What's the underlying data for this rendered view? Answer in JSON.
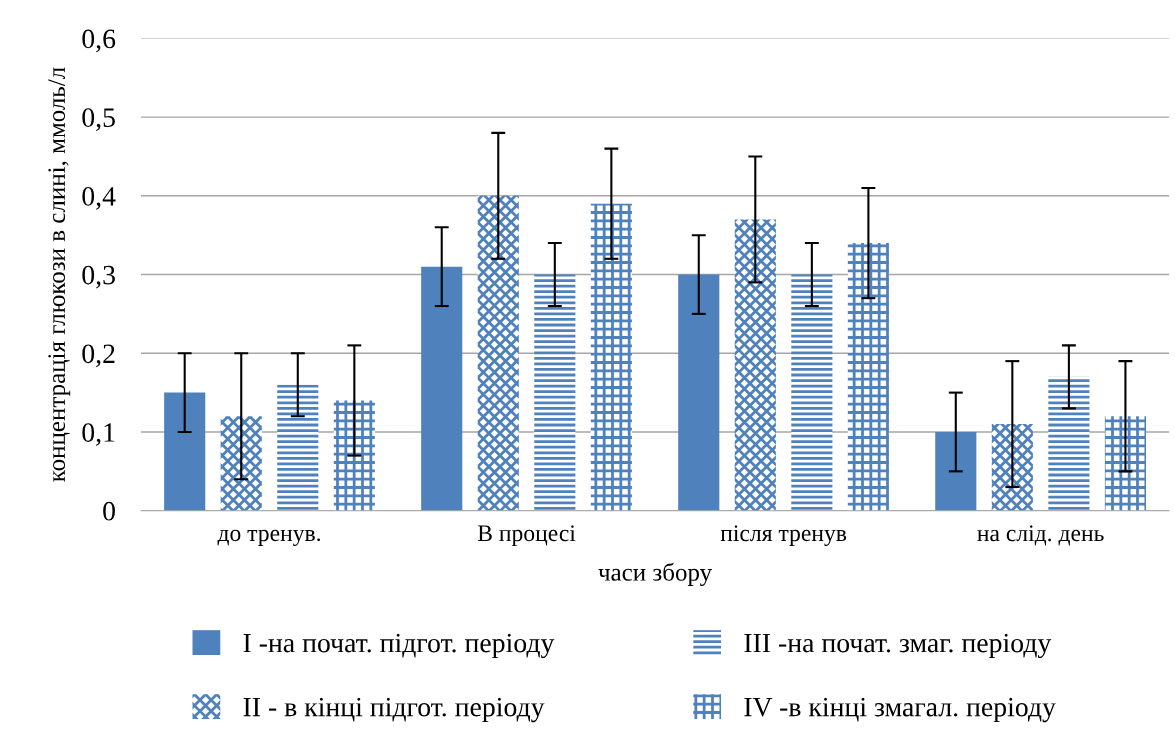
{
  "chart_data": {
    "type": "bar",
    "xlabel": "часи збору",
    "ylabel": "концентрація глюкози в слині, ммоль/л",
    "categories": [
      "до тренув.",
      "В процесі",
      "після тренув",
      "на слід. день"
    ],
    "series": [
      {
        "name": "I -на почат. підгот. періоду",
        "color": "#4f81bd",
        "values": [
          0.15,
          0.31,
          0.3,
          0.1
        ],
        "errors": [
          0.05,
          0.05,
          0.05,
          0.05
        ]
      },
      {
        "name": "II - в кінці підгот. періоду",
        "color": "#4f81bd",
        "values": [
          0.12,
          0.4,
          0.37,
          0.11
        ],
        "errors": [
          0.08,
          0.08,
          0.08,
          0.08
        ]
      },
      {
        "name": "III -на почат. змаг. періоду",
        "color": "#4f81bd",
        "values": [
          0.16,
          0.3,
          0.3,
          0.17
        ],
        "errors": [
          0.04,
          0.04,
          0.04,
          0.04
        ]
      },
      {
        "name": "IV -в кінці змагал. періоду",
        "color": "#4f81bd",
        "values": [
          0.14,
          0.39,
          0.34,
          0.12
        ],
        "errors": [
          0.07,
          0.07,
          0.07,
          0.07
        ]
      }
    ],
    "ylim": [
      0,
      0.6
    ],
    "yticks": [
      0,
      {
        "value": 0.1,
        "label": "0,1"
      },
      {
        "value": 0.2,
        "label": "0,2"
      },
      {
        "value": 0.3,
        "label": "0,3"
      },
      {
        "value": 0.4,
        "label": "0,4"
      },
      {
        "value": 0.5,
        "label": "0,5"
      },
      {
        "value": 0.6,
        "label": "0,6"
      }
    ],
    "grid": "y",
    "legend": "bottom"
  }
}
